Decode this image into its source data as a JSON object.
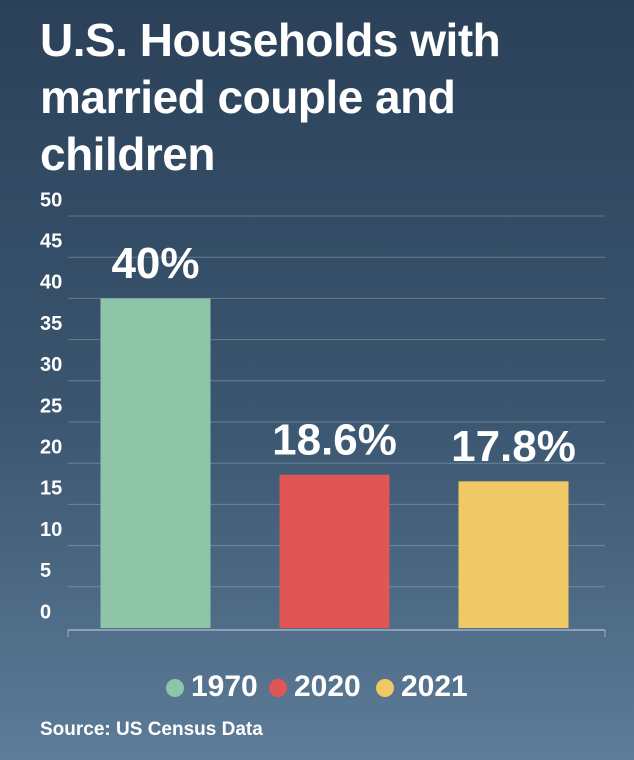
{
  "chart_data": {
    "type": "bar",
    "title": "U.S. Households with married couple and children",
    "categories": [
      "1970",
      "2020",
      "2021"
    ],
    "values": [
      40,
      18.6,
      17.8
    ],
    "value_labels": [
      "40%",
      "18.6%",
      "17.8%"
    ],
    "colors": [
      "#8ec5a8",
      "#e05555",
      "#f0c866"
    ],
    "ylim": [
      0,
      50
    ],
    "yticks": [
      0,
      5,
      10,
      15,
      20,
      25,
      30,
      35,
      40,
      45,
      50
    ],
    "grid": true,
    "legend": "bottom",
    "source": "Source: US Census Data"
  }
}
